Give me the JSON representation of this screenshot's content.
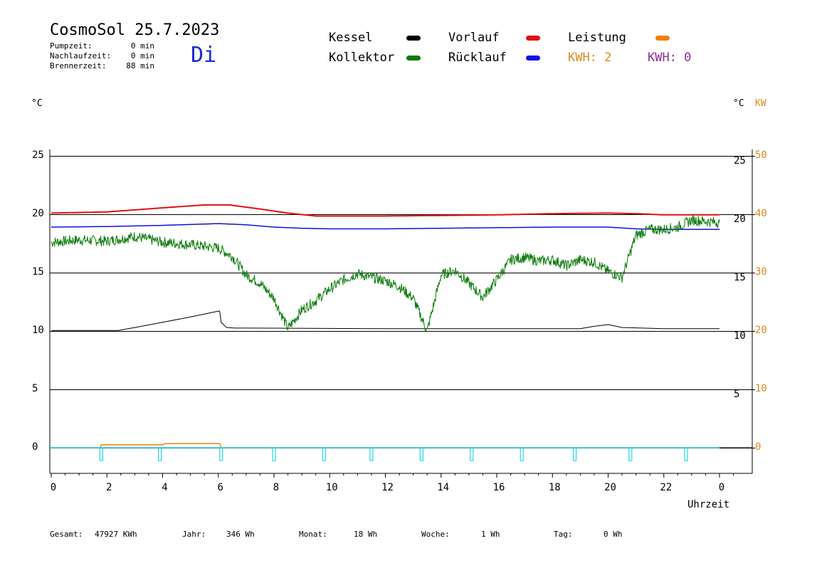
{
  "header": {
    "title": "CosmoSol 25.7.2023",
    "day": "Di",
    "stats": [
      {
        "label": "Pumpzeit:",
        "value": "0 min"
      },
      {
        "label": "Nachlaufzeit:",
        "value": "0 min"
      },
      {
        "label": "Brennerzeit:",
        "value": "88 min"
      }
    ]
  },
  "legend": {
    "items": [
      {
        "label": "Kessel",
        "color": "#000000"
      },
      {
        "label": "Kollektor",
        "color": "#0a7a0a"
      },
      {
        "label": "Vorlauf",
        "color": "#e01010"
      },
      {
        "label": "Rücklauf",
        "color": "#1010e0"
      },
      {
        "label": "Leistung",
        "color": "#f08010"
      }
    ],
    "kwh": [
      {
        "text": "KWH: 2",
        "color": "#d88a20"
      },
      {
        "text": "KWH: 0",
        "color": "#8a2c9a"
      }
    ]
  },
  "axes": {
    "left_unit": "°C",
    "right_unit_c": "°C",
    "right_unit_kw": "KW",
    "x_label": "Uhrzeit"
  },
  "footer": [
    {
      "label": "Gesamt:",
      "value": "47927 KWh"
    },
    {
      "label": "Jahr:",
      "value": "346 Wh"
    },
    {
      "label": "Monat:",
      "value": "18 Wh"
    },
    {
      "label": "Woche:",
      "value": "1 Wh"
    },
    {
      "label": "Tag:",
      "value": "0 Wh"
    }
  ],
  "chart_data": {
    "type": "line",
    "xlabel": "Uhrzeit",
    "ylabel": "°C",
    "xlim": [
      0,
      24
    ],
    "ylim": [
      -2,
      25
    ],
    "x_ticks": [
      "0",
      "2",
      "4",
      "6",
      "8",
      "10",
      "12",
      "14",
      "16",
      "18",
      "20",
      "22",
      "0"
    ],
    "y_left_ticks": [
      0,
      5,
      10,
      15,
      20,
      25
    ],
    "y_right_ticks_c": [
      5,
      10,
      15,
      20,
      25
    ],
    "y_right_ticks_kw": [
      0,
      10,
      20,
      30,
      40,
      50
    ],
    "grid": true,
    "series": [
      {
        "name": "Vorlauf",
        "color": "#e01010",
        "x": [
          0,
          2,
          4,
          5.5,
          6.4,
          7.5,
          8.5,
          9.5,
          12,
          16,
          18,
          20,
          21,
          22,
          24
        ],
        "y": [
          40.2,
          40.4,
          41.1,
          41.6,
          41.6,
          40.9,
          40.2,
          39.7,
          39.7,
          39.9,
          40.1,
          40.2,
          40.1,
          39.9,
          39.9
        ]
      },
      {
        "name": "Rücklauf",
        "color": "#1010e0",
        "x": [
          0,
          2,
          4,
          6,
          7,
          8,
          9,
          10,
          12,
          16,
          18,
          20,
          21,
          22,
          24
        ],
        "y": [
          37.8,
          37.9,
          38.1,
          38.4,
          38.2,
          37.8,
          37.6,
          37.5,
          37.5,
          37.7,
          37.8,
          37.8,
          37.5,
          37.4,
          37.4
        ]
      },
      {
        "name": "Kessel",
        "color": "#000000",
        "x": [
          0,
          0.1,
          2.4,
          3,
          4,
          5,
          6,
          6.05,
          6.1,
          6.3,
          6.6,
          7,
          12,
          18,
          19,
          19.5,
          20,
          20.5,
          22,
          24
        ],
        "y": [
          20.0,
          20.1,
          20.1,
          20.6,
          21.5,
          22.4,
          23.4,
          23.4,
          21.5,
          20.6,
          20.5,
          20.5,
          20.4,
          20.4,
          20.4,
          20.8,
          21.1,
          20.6,
          20.4,
          20.4
        ]
      },
      {
        "name": "Kollektor",
        "color": "#0a7a0a",
        "x": [
          0,
          1,
          2,
          3,
          4,
          5,
          6,
          6.5,
          7,
          7.5,
          8,
          8.5,
          9,
          9.5,
          10,
          10.5,
          11,
          11.5,
          12,
          12.5,
          13,
          13.5,
          14,
          14.5,
          15,
          15.5,
          16,
          16.5,
          17,
          17.5,
          18,
          18.5,
          19,
          19.5,
          20,
          20.5,
          21,
          21.5,
          22,
          22.5,
          23,
          23.5,
          24
        ],
        "y": [
          17.6,
          17.8,
          17.7,
          18.1,
          17.6,
          17.4,
          17.1,
          16.4,
          14.8,
          14.1,
          12.8,
          10.2,
          11.8,
          12.6,
          13.6,
          14.4,
          14.9,
          14.6,
          14.3,
          13.8,
          12.8,
          10.0,
          14.8,
          15.2,
          14.1,
          12.9,
          14.4,
          16.1,
          16.3,
          16.0,
          16.1,
          15.6,
          16.1,
          15.9,
          15.1,
          14.6,
          18.2,
          18.7,
          18.7,
          18.9,
          19.5,
          19.4,
          19.3
        ]
      },
      {
        "name": "Leistung",
        "color": "#f08010",
        "x": [
          0,
          1.75,
          1.8,
          4,
          4.1,
          6.05,
          6.1,
          24
        ],
        "y": [
          0,
          0,
          0.5,
          0.5,
          0.7,
          0.7,
          0,
          0
        ]
      }
    ],
    "pump_pulses_x": [
      1.8,
      3.9,
      6.1,
      8.0,
      9.8,
      11.5,
      13.3,
      15.1,
      16.9,
      18.8,
      20.8,
      22.8
    ]
  }
}
